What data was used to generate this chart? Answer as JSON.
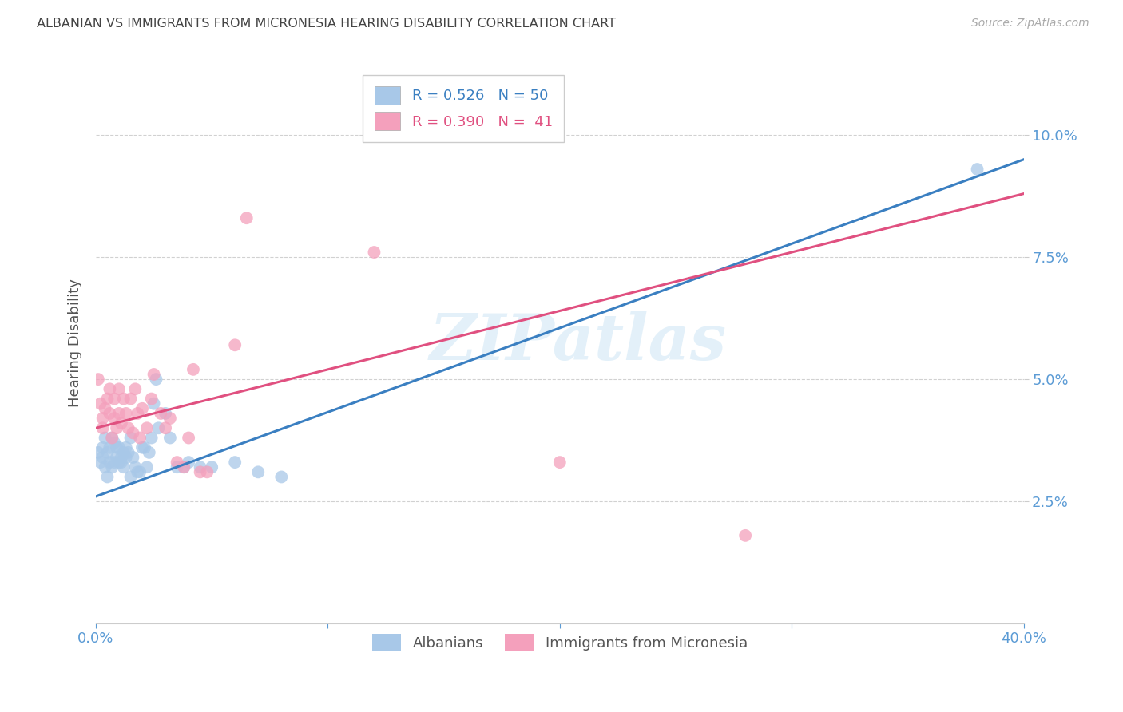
{
  "title": "ALBANIAN VS IMMIGRANTS FROM MICRONESIA HEARING DISABILITY CORRELATION CHART",
  "source": "Source: ZipAtlas.com",
  "ylabel_label": "Hearing Disability",
  "x_min": 0.0,
  "x_max": 0.4,
  "y_min": 0.0,
  "y_max": 0.115,
  "x_ticks": [
    0.0,
    0.1,
    0.2,
    0.3,
    0.4
  ],
  "x_tick_labels_show": [
    "0.0%",
    "",
    "",
    "",
    "40.0%"
  ],
  "y_ticks": [
    0.025,
    0.05,
    0.075,
    0.1
  ],
  "y_tick_labels": [
    "2.5%",
    "5.0%",
    "7.5%",
    "10.0%"
  ],
  "blue_R": 0.526,
  "blue_N": 50,
  "pink_R": 0.39,
  "pink_N": 41,
  "blue_color": "#a8c8e8",
  "pink_color": "#f4a0bc",
  "blue_line_color": "#3a7fc1",
  "pink_line_color": "#e05080",
  "watermark": "ZIPatlas",
  "blue_line_x0": 0.0,
  "blue_line_y0": 0.026,
  "blue_line_x1": 0.4,
  "blue_line_y1": 0.095,
  "pink_line_x0": 0.0,
  "pink_line_y0": 0.04,
  "pink_line_x1": 0.4,
  "pink_line_y1": 0.088,
  "blue_scatter_x": [
    0.001,
    0.002,
    0.003,
    0.003,
    0.004,
    0.004,
    0.005,
    0.005,
    0.006,
    0.006,
    0.007,
    0.007,
    0.008,
    0.008,
    0.009,
    0.009,
    0.01,
    0.01,
    0.011,
    0.011,
    0.012,
    0.012,
    0.013,
    0.013,
    0.014,
    0.015,
    0.015,
    0.016,
    0.017,
    0.018,
    0.019,
    0.02,
    0.021,
    0.022,
    0.023,
    0.024,
    0.025,
    0.026,
    0.027,
    0.03,
    0.032,
    0.035,
    0.038,
    0.04,
    0.045,
    0.05,
    0.06,
    0.07,
    0.08,
    0.38
  ],
  "blue_scatter_y": [
    0.035,
    0.033,
    0.036,
    0.034,
    0.038,
    0.032,
    0.035,
    0.03,
    0.033,
    0.036,
    0.038,
    0.032,
    0.033,
    0.037,
    0.034,
    0.036,
    0.033,
    0.036,
    0.034,
    0.033,
    0.035,
    0.032,
    0.036,
    0.034,
    0.035,
    0.038,
    0.03,
    0.034,
    0.032,
    0.031,
    0.031,
    0.036,
    0.036,
    0.032,
    0.035,
    0.038,
    0.045,
    0.05,
    0.04,
    0.043,
    0.038,
    0.032,
    0.032,
    0.033,
    0.032,
    0.032,
    0.033,
    0.031,
    0.03,
    0.093
  ],
  "pink_scatter_x": [
    0.001,
    0.002,
    0.003,
    0.003,
    0.004,
    0.005,
    0.006,
    0.006,
    0.007,
    0.008,
    0.008,
    0.009,
    0.01,
    0.01,
    0.011,
    0.012,
    0.013,
    0.014,
    0.015,
    0.016,
    0.017,
    0.018,
    0.019,
    0.02,
    0.022,
    0.024,
    0.025,
    0.028,
    0.03,
    0.032,
    0.035,
    0.038,
    0.04,
    0.042,
    0.045,
    0.048,
    0.06,
    0.065,
    0.12,
    0.2,
    0.28
  ],
  "pink_scatter_y": [
    0.05,
    0.045,
    0.04,
    0.042,
    0.044,
    0.046,
    0.043,
    0.048,
    0.038,
    0.042,
    0.046,
    0.04,
    0.043,
    0.048,
    0.041,
    0.046,
    0.043,
    0.04,
    0.046,
    0.039,
    0.048,
    0.043,
    0.038,
    0.044,
    0.04,
    0.046,
    0.051,
    0.043,
    0.04,
    0.042,
    0.033,
    0.032,
    0.038,
    0.052,
    0.031,
    0.031,
    0.057,
    0.083,
    0.076,
    0.033,
    0.018
  ],
  "background_color": "#ffffff",
  "grid_color": "#cccccc",
  "title_color": "#444444",
  "axis_label_color": "#555555",
  "tick_label_color": "#5b9bd5",
  "legend_label_blue": "Albanians",
  "legend_label_pink": "Immigrants from Micronesia"
}
